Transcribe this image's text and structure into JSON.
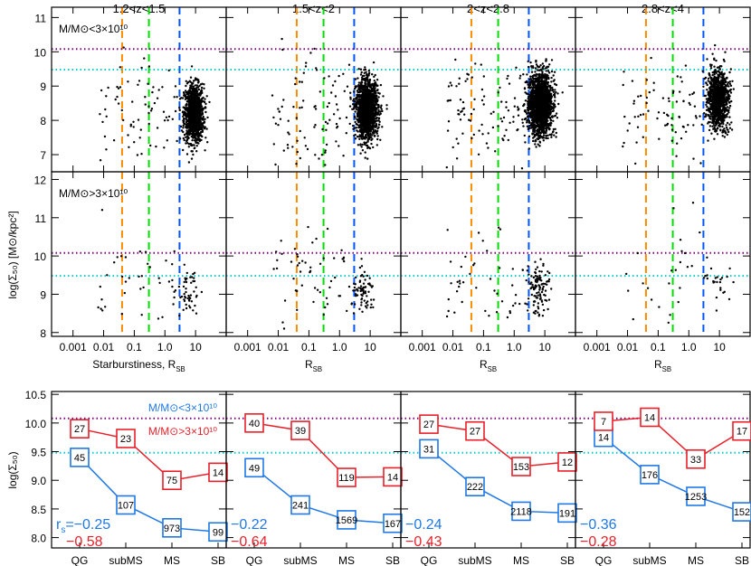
{
  "colors": {
    "qg": "#ff8c00",
    "submsl": "#00dd00",
    "sb": "#0055ff",
    "purple": "#800080",
    "cyan": "#00cccc",
    "low": "#1f78e6",
    "high": "#e8202a"
  },
  "chart_data": {
    "type": "scatter",
    "panel_titles": [
      "1.2<z<1.5",
      "1.5<z<2",
      "2<z<2.8",
      "2.8<z<4"
    ],
    "scatter_ylabel": "log(Σ₅₀) [M⊙/kpc²]",
    "xlabels": [
      "Starburstiness, R",
      "R",
      "R",
      "R"
    ],
    "xlabel_sub": "SB",
    "x_ticks": [
      "0.001",
      "0.01",
      "0.1",
      "1.0",
      "10"
    ],
    "x_scale": "log",
    "xlim": [
      0.0002,
      100
    ],
    "top_row": {
      "label": "M/M⊙<3×10¹⁰",
      "ylim": [
        6.5,
        11.3
      ],
      "yticks": [
        "7",
        "8",
        "9",
        "10",
        "11"
      ]
    },
    "mid_row": {
      "label": "M/M⊙>3×10¹⁰",
      "ylim": [
        7.9,
        12.2
      ],
      "yticks": [
        "8",
        "9",
        "10",
        "11",
        "12"
      ]
    },
    "vertical_lines_x": {
      "qg": 0.04,
      "submsl": 0.3,
      "sb": 3.0
    },
    "horizontal_lines_y": {
      "purple": 10.08,
      "cyan": 9.48
    },
    "bottom_row": {
      "ylabel": "log(Σ₅₀)",
      "ylim": [
        7.82,
        10.55
      ],
      "yticks": [
        "8.0",
        "8.5",
        "9.0",
        "9.5",
        "10.0",
        "10.5"
      ],
      "categories": [
        "QG",
        "subMS",
        "MS",
        "SB"
      ],
      "legend_low": "M/M⊙<3×10¹⁰",
      "legend_high": "M/M⊙>3×10¹⁰",
      "rs_prefix": "r",
      "rs_sub": "s",
      "panels": [
        {
          "low": {
            "values": [
              9.4,
              8.57,
              8.17,
              8.1
            ],
            "counts": [
              "45",
              "107",
              "973",
              "99"
            ],
            "rs": "=−0.25"
          },
          "high": {
            "values": [
              9.9,
              9.73,
              9.0,
              9.14
            ],
            "counts": [
              "27",
              "23",
              "75",
              "14"
            ],
            "rs": "−0.58"
          }
        },
        {
          "low": {
            "values": [
              9.22,
              8.57,
              8.31,
              8.25
            ],
            "counts": [
              "49",
              "241",
              "1569",
              "167"
            ],
            "rs": "−0.22"
          },
          "high": {
            "values": [
              10.0,
              9.87,
              9.05,
              9.06
            ],
            "counts": [
              "40",
              "39",
              "119",
              "14"
            ],
            "rs": "−0.64"
          }
        },
        {
          "low": {
            "values": [
              9.55,
              8.89,
              8.46,
              8.43
            ],
            "counts": [
              "31",
              "222",
              "2118",
              "191"
            ],
            "rs": "−0.24"
          },
          "high": {
            "values": [
              9.98,
              9.86,
              9.24,
              9.32
            ],
            "counts": [
              "27",
              "27",
              "153",
              "12"
            ],
            "rs": "−0.43"
          }
        },
        {
          "low": {
            "values": [
              9.75,
              9.1,
              8.72,
              8.45
            ],
            "counts": [
              "14",
              "176",
              "1253",
              "152"
            ],
            "rs": "−0.36"
          },
          "high": {
            "values": [
              10.03,
              10.1,
              9.37,
              9.86
            ],
            "counts": [
              "7",
              "14",
              "33",
              "17"
            ],
            "rs": "−0.28"
          }
        }
      ]
    }
  }
}
